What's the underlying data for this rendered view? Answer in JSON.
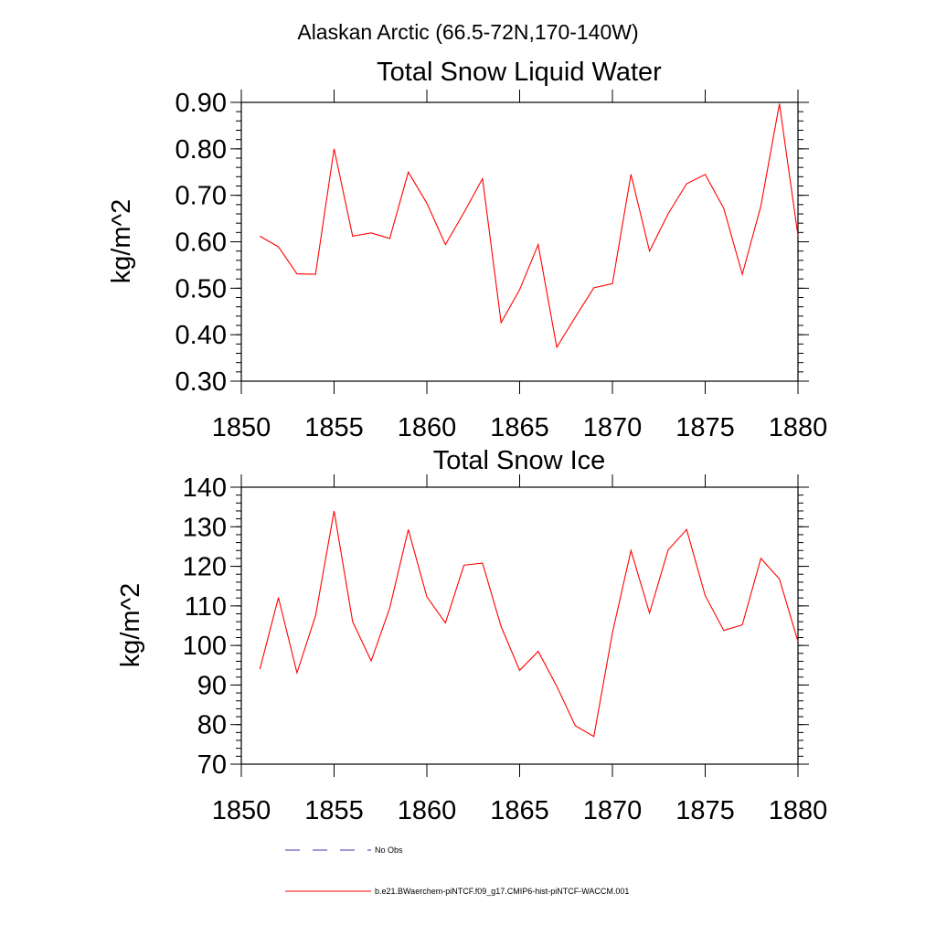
{
  "figure_title": "Alaskan Arctic (66.5-72N,170-140W)",
  "legend": [
    {
      "label": "No Obs",
      "style": "dashed",
      "color": "#3a3aa8"
    },
    {
      "label": "b.e21.BWaerchem-piNTCF.f09_g17.CMIP6-hist-piNTCF-WACCM.001",
      "style": "solid",
      "color": "#ff0000"
    }
  ],
  "chart_data": [
    {
      "type": "line",
      "title": "Total Snow Liquid Water",
      "xlabel": "",
      "ylabel": "kg/m^2",
      "xlim": [
        1850,
        1880
      ],
      "ylim": [
        0.3,
        0.9
      ],
      "xticks": [
        1850,
        1855,
        1860,
        1865,
        1870,
        1875,
        1880
      ],
      "xtick_labels": [
        "1850",
        "1855",
        "1860",
        "1865",
        "1870",
        "1875",
        "1880"
      ],
      "yticks": [
        0.3,
        0.4,
        0.5,
        0.6,
        0.7,
        0.8,
        0.9
      ],
      "ytick_labels": [
        "0.30",
        "0.40",
        "0.50",
        "0.60",
        "0.70",
        "0.80",
        "0.90"
      ],
      "y_minor_step": 0.02,
      "x": [
        1851,
        1852,
        1853,
        1854,
        1855,
        1856,
        1857,
        1858,
        1859,
        1860,
        1861,
        1862,
        1863,
        1864,
        1865,
        1866,
        1867,
        1868,
        1869,
        1870,
        1871,
        1872,
        1873,
        1874,
        1875,
        1876,
        1877,
        1878,
        1879,
        1880
      ],
      "series": [
        {
          "color": "#ff0000",
          "values": [
            0.612,
            0.589,
            0.531,
            0.53,
            0.8,
            0.612,
            0.619,
            0.607,
            0.75,
            0.683,
            0.594,
            0.663,
            0.736,
            0.426,
            0.497,
            0.594,
            0.373,
            0.438,
            0.501,
            0.51,
            0.745,
            0.58,
            0.66,
            0.725,
            0.745,
            0.672,
            0.53,
            0.677,
            0.897,
            0.613
          ]
        }
      ]
    },
    {
      "type": "line",
      "title": "Total Snow Ice",
      "xlabel": "",
      "ylabel": "kg/m^2",
      "xlim": [
        1850,
        1880
      ],
      "ylim": [
        70,
        140
      ],
      "xticks": [
        1850,
        1855,
        1860,
        1865,
        1870,
        1875,
        1880
      ],
      "xtick_labels": [
        "1850",
        "1855",
        "1860",
        "1865",
        "1870",
        "1875",
        "1880"
      ],
      "yticks": [
        70,
        80,
        90,
        100,
        110,
        120,
        130,
        140
      ],
      "ytick_labels": [
        "70",
        "80",
        "90",
        "100",
        "110",
        "120",
        "130",
        "140"
      ],
      "y_minor_step": 2,
      "x": [
        1851,
        1852,
        1853,
        1854,
        1855,
        1856,
        1857,
        1858,
        1859,
        1860,
        1861,
        1862,
        1863,
        1864,
        1865,
        1866,
        1867,
        1868,
        1869,
        1870,
        1871,
        1872,
        1873,
        1874,
        1875,
        1876,
        1877,
        1878,
        1879,
        1880
      ],
      "series": [
        {
          "color": "#ff0000",
          "values": [
            94.0,
            112.1,
            93.1,
            107.5,
            134.0,
            106.0,
            96.1,
            109.5,
            129.3,
            112.3,
            105.7,
            120.3,
            120.8,
            104.8,
            93.7,
            98.5,
            89.7,
            79.7,
            77.0,
            103.2,
            124.0,
            108.2,
            124.1,
            129.3,
            112.6,
            103.8,
            105.2,
            122.0,
            116.8,
            101.0
          ]
        }
      ]
    }
  ]
}
